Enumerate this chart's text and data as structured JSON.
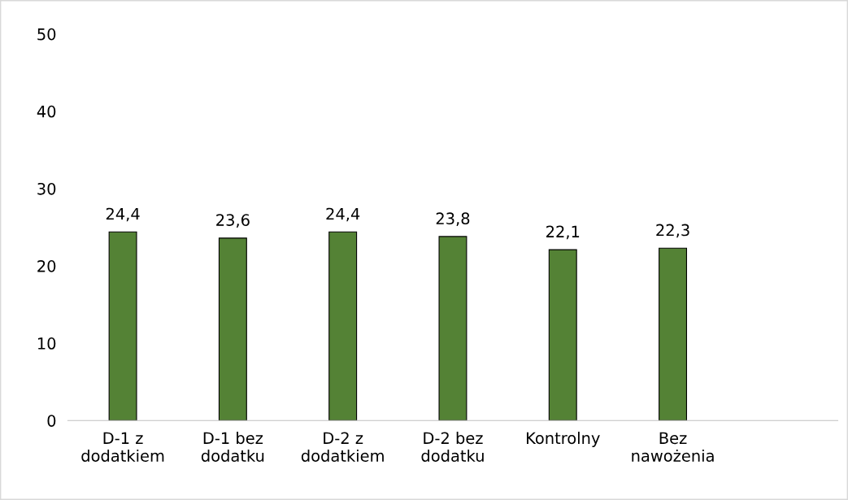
{
  "chart_data": {
    "type": "bar",
    "categories": [
      "D-1 z\ndodatkiem",
      "D-1 bez\ndodatku",
      "D-2 z\ndodatkiem",
      "D-2 bez\ndodatku",
      "Kontrolny",
      "Bez\nnawożenia",
      null
    ],
    "values": [
      24.4,
      23.6,
      24.4,
      23.8,
      22.1,
      22.3,
      null
    ],
    "value_labels": [
      "24,4",
      "23,6",
      "24,4",
      "23,8",
      "22,1",
      "22,3",
      null
    ],
    "color": "#548235",
    "ylim": [
      0,
      50
    ],
    "yticks": [
      0,
      10,
      20,
      30,
      40,
      50
    ],
    "grid": false
  }
}
